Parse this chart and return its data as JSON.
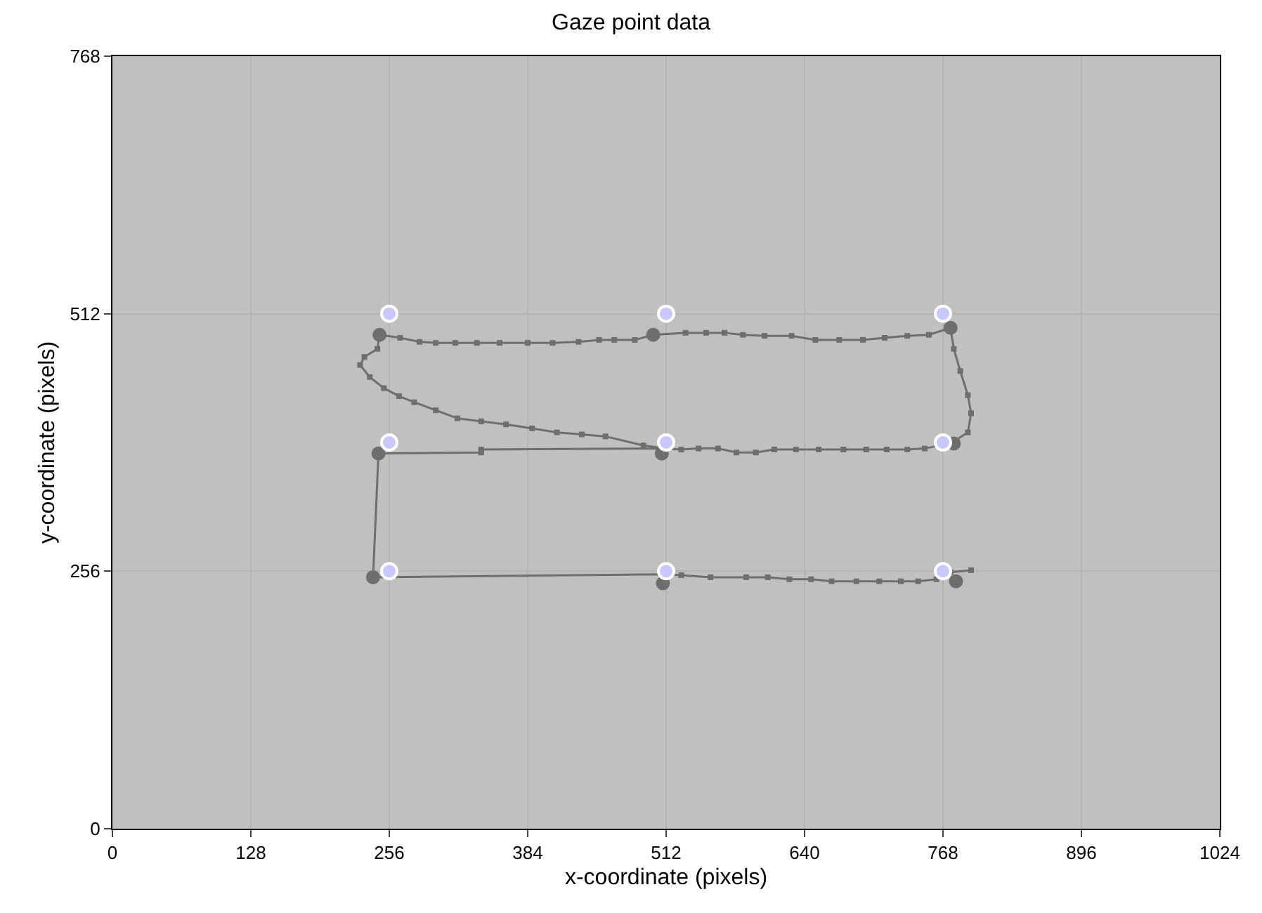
{
  "chart_data": {
    "type": "scatter",
    "title": "Gaze point data",
    "xlabel": "x-coordinate (pixels)",
    "ylabel": "y-coordinate (pixels)",
    "xlim": [
      0,
      1024
    ],
    "xticks": [
      0,
      128,
      256,
      384,
      512,
      640,
      768,
      896,
      1024
    ],
    "ylim": [
      0,
      768
    ],
    "yticks": [
      0,
      256,
      512,
      768
    ],
    "grid": true,
    "legend": false,
    "series": [
      {
        "type": "line",
        "color": "#6e6e6e",
        "marker": "square",
        "x": [
          511,
          491,
          456,
          434,
          411,
          388,
          364,
          341,
          319,
          299,
          279,
          265,
          251,
          238,
          229,
          233,
          245,
          247,
          266,
          284,
          299,
          317,
          337,
          358,
          384,
          407,
          431,
          450,
          464,
          483,
          497,
          500,
          530,
          549,
          566,
          583,
          603,
          628,
          650,
          672,
          694,
          714,
          735,
          755,
          775,
          778,
          784,
          791,
          794,
          791,
          778,
          775,
          751,
          735,
          716,
          697,
          676,
          653,
          632,
          612,
          595,
          577,
          560,
          542,
          526,
          509,
          341,
          341,
          246,
          241,
          509,
          526,
          553,
          586,
          606,
          626,
          646,
          665,
          688,
          709,
          729,
          745,
          762,
          775,
          794
        ],
        "values": [
          378,
          381,
          390,
          392,
          394,
          398,
          402,
          405,
          408,
          416,
          424,
          430,
          438,
          449,
          461,
          469,
          477,
          491,
          488,
          484,
          483,
          483,
          483,
          483,
          483,
          483,
          484,
          486,
          486,
          486,
          490,
          491,
          493,
          493,
          493,
          491,
          490,
          490,
          486,
          486,
          486,
          488,
          490,
          491,
          498,
          477,
          455,
          431,
          413,
          394,
          385,
          383,
          378,
          377,
          377,
          377,
          377,
          377,
          377,
          377,
          374,
          374,
          378,
          378,
          377,
          378,
          377,
          374,
          373,
          250,
          253,
          252,
          250,
          250,
          250,
          248,
          248,
          246,
          246,
          246,
          246,
          246,
          248,
          255,
          257
        ]
      },
      {
        "color": "#6e6e6e",
        "marker": "circle",
        "x": [
          508,
          247,
          500,
          775,
          778,
          246,
          241,
          509,
          780
        ],
        "values": [
          373,
          491,
          491,
          498,
          383,
          373,
          250,
          244,
          246
        ]
      },
      {
        "color": "#c8c8ff",
        "marker": "circle",
        "x": [
          256,
          512,
          768,
          256,
          512,
          768,
          256,
          512,
          768
        ],
        "values": [
          512,
          512,
          512,
          384,
          384,
          384,
          256,
          256,
          256
        ]
      }
    ]
  }
}
